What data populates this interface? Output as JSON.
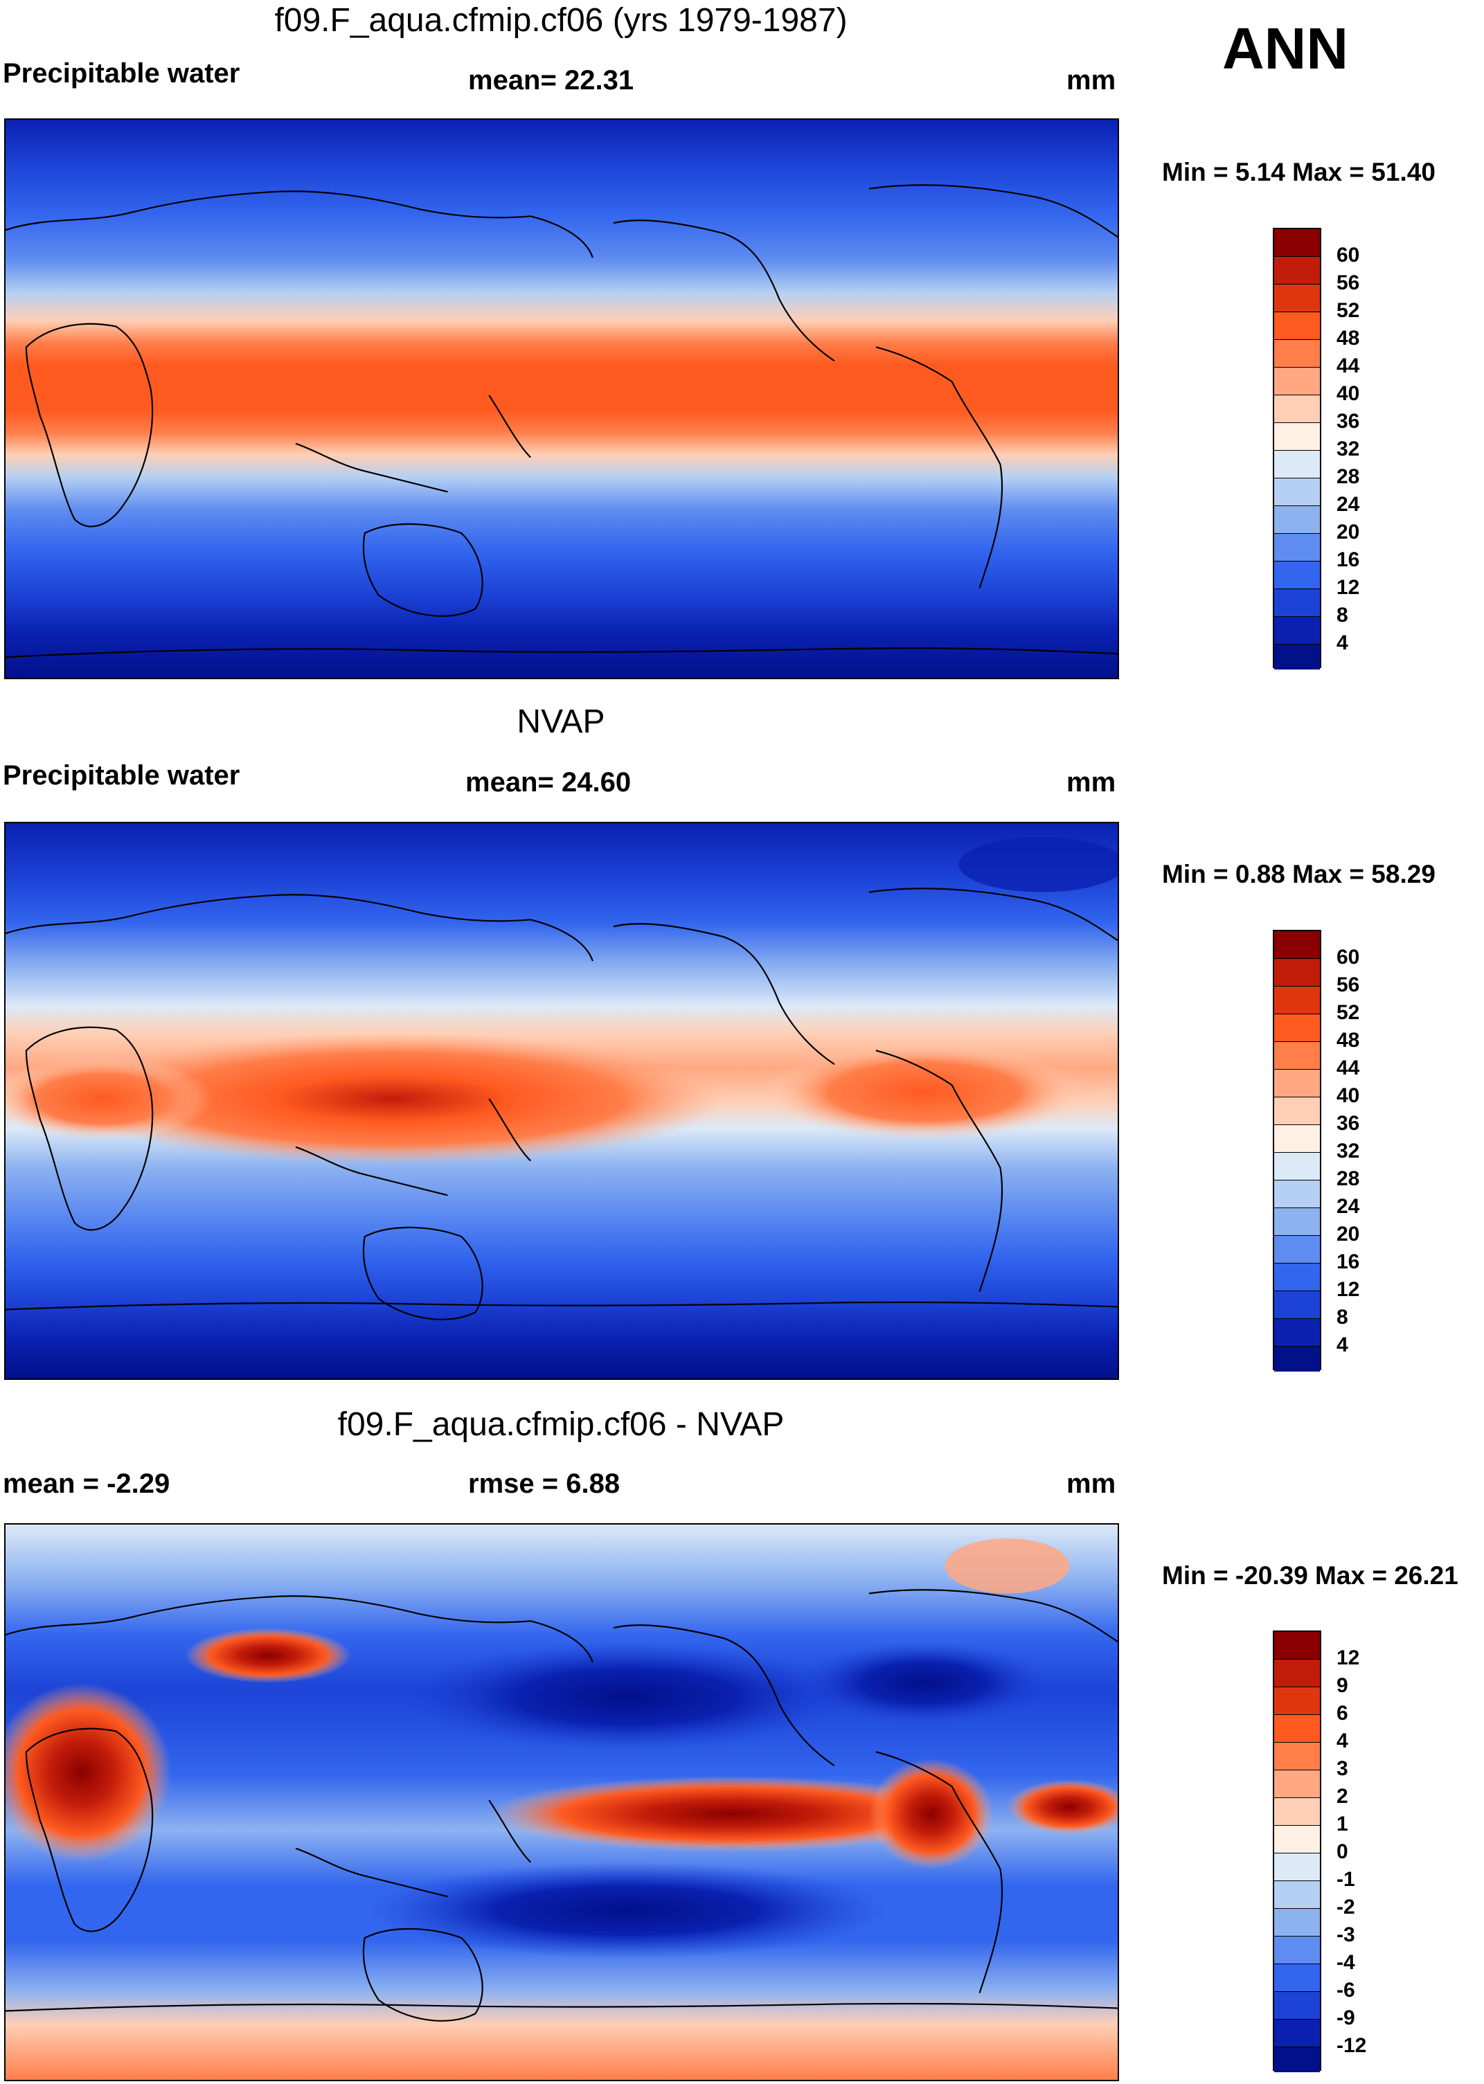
{
  "season": "ANN",
  "panels": [
    {
      "id": "model",
      "title": "f09.F_aqua.cfmip.cf06 (yrs 1979-1987)",
      "left_label": "Precipitable water",
      "center_label": "mean=  22.31",
      "units": "mm",
      "minmax": "Min =   5.14 Max =  51.40",
      "colorbar": {
        "ticks": [
          "60",
          "56",
          "52",
          "48",
          "44",
          "40",
          "36",
          "32",
          "28",
          "24",
          "20",
          "16",
          "12",
          "8",
          "4"
        ],
        "colors": [
          "#8b0000",
          "#c21c0a",
          "#e0360f",
          "#ff5a20",
          "#ff7e4a",
          "#ffa882",
          "#ffcfb5",
          "#fff0e4",
          "#dce9f7",
          "#b5d0f2",
          "#8db2f0",
          "#5e8cf0",
          "#3366ee",
          "#1c43d6",
          "#0a21b0",
          "#02108a"
        ]
      }
    },
    {
      "id": "obs",
      "title": "NVAP",
      "left_label": "Precipitable water",
      "center_label": "mean=  24.60",
      "units": "mm",
      "minmax": "Min =   0.88 Max =  58.29",
      "colorbar": {
        "ticks": [
          "60",
          "56",
          "52",
          "48",
          "44",
          "40",
          "36",
          "32",
          "28",
          "24",
          "20",
          "16",
          "12",
          "8",
          "4"
        ],
        "colors": [
          "#8b0000",
          "#c21c0a",
          "#e0360f",
          "#ff5a20",
          "#ff7e4a",
          "#ffa882",
          "#ffcfb5",
          "#fff0e4",
          "#dce9f7",
          "#b5d0f2",
          "#8db2f0",
          "#5e8cf0",
          "#3366ee",
          "#1c43d6",
          "#0a21b0",
          "#02108a"
        ]
      }
    },
    {
      "id": "diff",
      "title": "f09.F_aqua.cfmip.cf06 - NVAP",
      "left_label": "mean =  -2.29",
      "center_label": "rmse =    6.88",
      "units": "mm",
      "minmax": "Min = -20.39 Max =  26.21",
      "colorbar": {
        "ticks": [
          "12",
          "9",
          "6",
          "4",
          "3",
          "2",
          "1",
          "0",
          "-1",
          "-2",
          "-3",
          "-4",
          "-6",
          "-9",
          "-12"
        ],
        "colors": [
          "#8b0000",
          "#c21c0a",
          "#e0360f",
          "#ff5a20",
          "#ff7e4a",
          "#ffa882",
          "#ffcfb5",
          "#fff0e4",
          "#dce9f7",
          "#b5d0f2",
          "#8db2f0",
          "#5e8cf0",
          "#3366ee",
          "#1c43d6",
          "#0a21b0",
          "#02108a"
        ]
      }
    }
  ]
}
